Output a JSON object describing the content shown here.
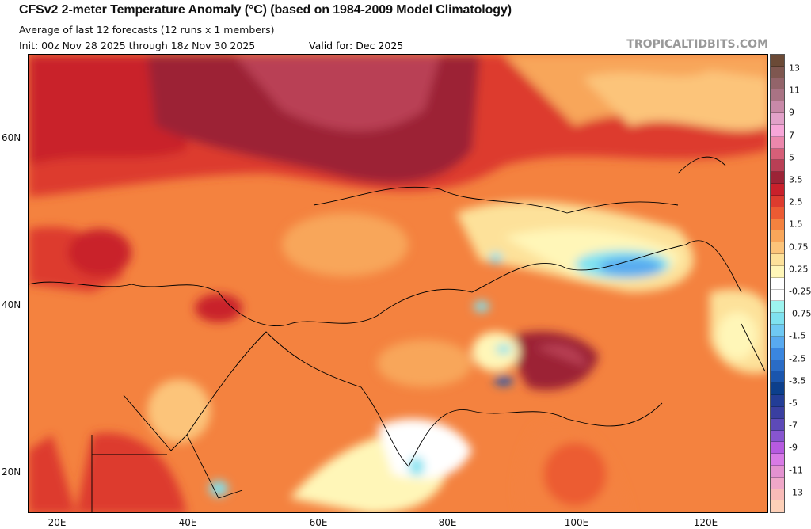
{
  "header": {
    "title": "CFSv2 2-meter Temperature Anomaly (°C) (based on 1984-2009 Model Climatology)",
    "subtitle": "Average of last 12 forecasts (12 runs x 1 members)",
    "init": "Init: 00z Nov 28 2025 through 18z Nov 30 2025",
    "valid": "Valid for: Dec 2025",
    "brand": "TROPICALTIDBITS.COM"
  },
  "colorbar": {
    "labels": [
      "13",
      "11",
      "9",
      "7",
      "5",
      "3.5",
      "2.5",
      "1.5",
      "0.75",
      "0.25",
      "-0.25",
      "-0.75",
      "-1.5",
      "-2.5",
      "-3.5",
      "-5",
      "-7",
      "-9",
      "-11",
      "-13"
    ],
    "colors": [
      "#6b4a36",
      "#7f5750",
      "#93646a",
      "#a97384",
      "#c889a8",
      "#e2a1c9",
      "#f7a6d8",
      "#ec87ac",
      "#d65f78",
      "#b93f55",
      "#9c2336",
      "#c9202b",
      "#dd3b2e",
      "#ec5b33",
      "#f4823f",
      "#f8a65a",
      "#fcc47a",
      "#fde19a",
      "#fff6b8",
      "#ffffff",
      "#ffffff",
      "#9df4ef",
      "#7fe2f0",
      "#6fc9f3",
      "#58aaf0",
      "#3a86df",
      "#2a6cc6",
      "#1a55ad",
      "#0c3f8c",
      "#233d96",
      "#3a3fa0",
      "#5d4ab8",
      "#8755cf",
      "#b65ae0",
      "#d87ae6",
      "#e392d0",
      "#efa7c8",
      "#f8bbb8",
      "#fdd0b8"
    ]
  },
  "map": {
    "lat_labels": [
      "60N",
      "40N",
      "20N"
    ],
    "lon_labels": [
      "20E",
      "40E",
      "60E",
      "80E",
      "100E",
      "120E"
    ]
  }
}
